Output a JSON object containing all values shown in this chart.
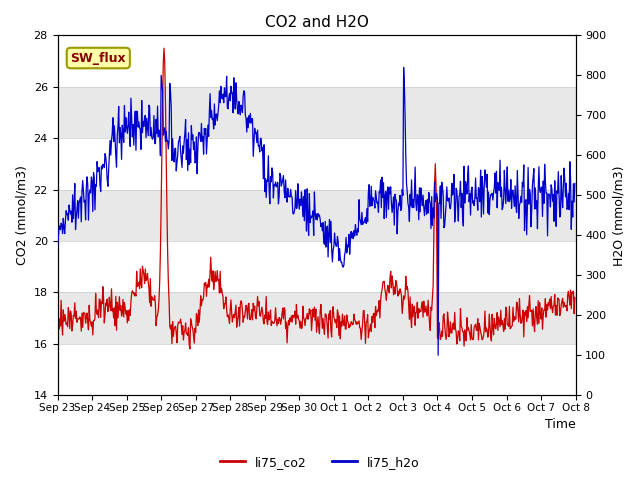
{
  "title": "CO2 and H2O",
  "xlabel": "Time",
  "ylabel_left": "CO2 (mmol/m3)",
  "ylabel_right": "H2O (mmol/m3)",
  "ylim_left": [
    14,
    28
  ],
  "ylim_right": [
    0,
    900
  ],
  "yticks_left": [
    14,
    16,
    18,
    20,
    22,
    24,
    26,
    28
  ],
  "yticks_right": [
    0,
    100,
    200,
    300,
    400,
    500,
    600,
    700,
    800,
    900
  ],
  "color_co2": "#cc0000",
  "color_h2o": "#0000cc",
  "bg_band_color": "#e8e8e8",
  "annotation_text": "SW_flux",
  "annotation_bg": "#ffffaa",
  "annotation_border": "#999900",
  "legend_co2": "li75_co2",
  "legend_h2o": "li75_h2o",
  "xtick_labels": [
    "Sep 23",
    "Sep 24",
    "Sep 25",
    "Sep 26",
    "Sep 27",
    "Sep 28",
    "Sep 29",
    "Sep 30",
    "Oct 1",
    "Oct 2",
    "Oct 3",
    "Oct 4",
    "Oct 5",
    "Oct 6",
    "Oct 7",
    "Oct 8"
  ],
  "fig_bg": "#ffffff",
  "plot_bg": "#ffffff",
  "grid_color": "#cccccc"
}
